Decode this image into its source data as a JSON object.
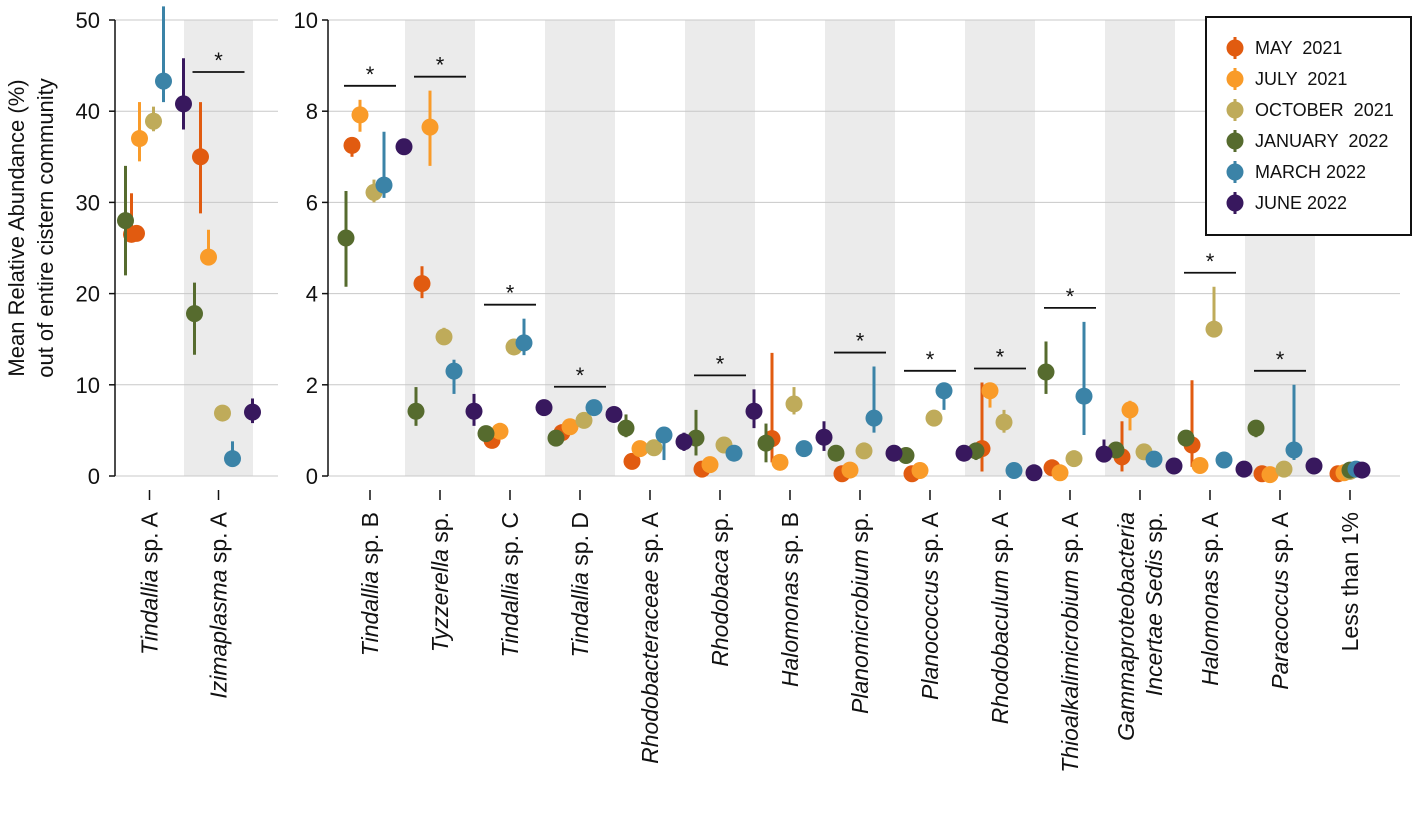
{
  "chart_data": [
    {
      "type": "scatter",
      "title": "",
      "ylabel_line1": "Mean Relative Abundance (%)",
      "ylabel_line2": "out of entire cistern community",
      "ylim": [
        0,
        50
      ],
      "yticks": [
        "0",
        "10",
        "20",
        "30",
        "40",
        "50"
      ],
      "grid": true,
      "categories": [
        {
          "name": "Tindallia",
          "suffix": " sp. A",
          "shaded": false,
          "significant": false
        },
        {
          "name": "Izimaplasma",
          "suffix": " sp. A",
          "shaded": true,
          "significant": true
        }
      ],
      "series": [
        {
          "name": "MAY  2021",
          "color": "#e15b10",
          "values": [
            26.5,
            35.0
          ],
          "err_low": [
            26.2,
            28.8
          ],
          "err_high": [
            31.0,
            41.0
          ]
        },
        {
          "name": "JULY  2021",
          "color": "#f99b29",
          "values": [
            37.0,
            24.0
          ],
          "err_low": [
            34.5,
            23.2
          ],
          "err_high": [
            41.0,
            27.0
          ]
        },
        {
          "name": "OCTOBER  2021",
          "color": "#bfab5a",
          "values": [
            38.9,
            6.9
          ],
          "err_low": [
            37.8,
            6.5
          ],
          "err_high": [
            40.5,
            7.2
          ]
        },
        {
          "name": "JANUARY  2022",
          "color": "#566b2e",
          "values": [
            28.0,
            17.8
          ],
          "err_low": [
            22.0,
            13.3
          ],
          "err_high": [
            34.0,
            21.2
          ]
        },
        {
          "name": "MARCH 2022",
          "color": "#3b83a7",
          "values": [
            43.3,
            1.9
          ],
          "err_low": [
            41.0,
            1.6
          ],
          "err_high": [
            51.5,
            3.8
          ]
        },
        {
          "name": "JUNE 2022",
          "color": "#38185e",
          "values": [
            40.8,
            7.0
          ],
          "err_low": [
            38.0,
            5.8
          ],
          "err_high": [
            45.8,
            8.5
          ]
        }
      ],
      "extra_points": [
        {
          "series": 0,
          "category": 0,
          "value": 26.6
        }
      ]
    },
    {
      "type": "scatter",
      "title": "",
      "ylim": [
        0,
        10
      ],
      "yticks": [
        "0",
        "2",
        "4",
        "6",
        "8",
        "10"
      ],
      "grid": true,
      "categories": [
        {
          "name": "Tindallia",
          "suffix": " sp. B",
          "shaded": false,
          "significant": true
        },
        {
          "name": "Tyzzerella",
          "suffix": " sp.",
          "shaded": true,
          "significant": true
        },
        {
          "name": "Tindallia",
          "suffix": " sp. C",
          "shaded": false,
          "significant": true
        },
        {
          "name": "Tindallia",
          "suffix": " sp. D",
          "shaded": true,
          "significant": true
        },
        {
          "name": "Rhodobacteraceae",
          "suffix": " sp. A",
          "shaded": false,
          "significant": false
        },
        {
          "name": "Rhodobaca",
          "suffix": " sp.",
          "shaded": true,
          "significant": true
        },
        {
          "name": "Halomonas",
          "suffix": " sp. B",
          "shaded": false,
          "significant": false
        },
        {
          "name": "Planomicrobium",
          "suffix": " sp.",
          "shaded": true,
          "significant": true
        },
        {
          "name": "Planococcus",
          "suffix": " sp. A",
          "shaded": false,
          "significant": true
        },
        {
          "name": "Rhodobaculum",
          "suffix": " sp. A",
          "shaded": true,
          "significant": true
        },
        {
          "name": "Thioalkalimicrobium",
          "suffix": " sp. A",
          "shaded": false,
          "significant": true
        },
        {
          "name": "Gammaproteobacteria",
          "suffix": "",
          "name2": "Incertae Sedis",
          "suffix2": " sp.",
          "shaded": true,
          "significant": false
        },
        {
          "name": "Halomonas",
          "suffix": " sp. A",
          "shaded": false,
          "significant": true
        },
        {
          "name": "Paracoccus",
          "suffix": " sp. A",
          "shaded": true,
          "significant": true
        },
        {
          "name": "",
          "suffix": "Less than 1%",
          "shaded": false,
          "significant": false
        }
      ],
      "series": [
        {
          "name": "MAY  2021",
          "color": "#e15b10",
          "values": [
            7.25,
            4.22,
            0.78,
            0.95,
            0.32,
            0.15,
            0.82,
            0.05,
            0.05,
            0.6,
            0.18,
            0.42,
            0.68,
            0.05,
            0.05
          ],
          "err_low": [
            7.0,
            3.9,
            0.65,
            0.8,
            0.2,
            0.08,
            0.3,
            0.02,
            0.02,
            0.1,
            0.08,
            0.1,
            0.2,
            0.02,
            0.03
          ],
          "err_high": [
            7.4,
            4.6,
            0.95,
            1.1,
            0.5,
            0.25,
            2.7,
            0.1,
            0.1,
            2.05,
            0.3,
            1.2,
            2.1,
            0.1,
            0.08
          ]
        },
        {
          "name": "JULY  2021",
          "color": "#f99b29",
          "values": [
            7.92,
            7.65,
            0.98,
            1.08,
            0.6,
            0.25,
            0.3,
            0.13,
            0.12,
            1.87,
            0.07,
            1.45,
            0.23,
            0.03,
            0.07
          ],
          "err_low": [
            7.55,
            6.8,
            0.9,
            0.95,
            0.5,
            0.18,
            0.2,
            0.08,
            0.08,
            1.5,
            0.03,
            1.0,
            0.15,
            0.01,
            0.03
          ],
          "err_high": [
            8.25,
            8.45,
            1.1,
            1.2,
            0.75,
            0.35,
            0.45,
            0.2,
            0.2,
            2.05,
            0.12,
            1.65,
            0.35,
            0.06,
            0.12
          ]
        },
        {
          "name": "OCTOBER  2021",
          "color": "#bfab5a",
          "values": [
            6.22,
            3.05,
            2.83,
            1.22,
            0.62,
            0.68,
            1.58,
            0.55,
            1.27,
            1.18,
            0.38,
            0.53,
            3.22,
            0.15,
            0.1
          ],
          "err_low": [
            6.0,
            2.9,
            2.7,
            1.05,
            0.5,
            0.55,
            1.35,
            0.45,
            1.1,
            0.95,
            0.28,
            0.45,
            3.05,
            0.1,
            0.07
          ],
          "err_high": [
            6.5,
            3.25,
            2.95,
            1.35,
            0.75,
            0.8,
            1.95,
            0.65,
            1.45,
            1.45,
            0.48,
            0.62,
            4.15,
            0.22,
            0.14
          ]
        },
        {
          "name": "JANUARY  2022",
          "color": "#566b2e",
          "values": [
            5.22,
            1.42,
            0.93,
            0.83,
            1.05,
            0.83,
            0.72,
            0.5,
            0.45,
            0.55,
            2.28,
            0.57,
            0.83,
            1.05,
            0.13
          ],
          "err_low": [
            4.15,
            1.1,
            0.8,
            0.65,
            0.85,
            0.45,
            0.3,
            0.35,
            0.35,
            0.35,
            1.8,
            0.45,
            0.7,
            0.85,
            0.1
          ],
          "err_high": [
            6.25,
            1.95,
            1.05,
            0.95,
            1.35,
            1.45,
            1.15,
            0.62,
            0.55,
            0.7,
            2.95,
            0.65,
            0.95,
            1.2,
            0.17
          ]
        },
        {
          "name": "MARCH 2022",
          "color": "#3b83a7",
          "values": [
            6.38,
            2.3,
            2.92,
            1.5,
            0.9,
            0.5,
            0.6,
            1.27,
            1.87,
            0.12,
            1.75,
            0.37,
            0.35,
            0.57,
            0.15
          ],
          "err_low": [
            6.1,
            1.8,
            2.65,
            1.35,
            0.35,
            0.4,
            0.45,
            0.95,
            1.45,
            0.05,
            0.9,
            0.25,
            0.2,
            0.35,
            0.1
          ],
          "err_high": [
            7.55,
            2.55,
            3.45,
            1.65,
            1.05,
            0.6,
            0.75,
            2.4,
            2.0,
            0.2,
            3.38,
            0.5,
            0.5,
            2.0,
            0.2
          ]
        },
        {
          "name": "JUNE 2022",
          "color": "#38185e",
          "values": [
            7.22,
            1.42,
            1.5,
            1.35,
            0.75,
            1.42,
            0.85,
            0.5,
            0.5,
            0.07,
            0.48,
            0.22,
            0.15,
            0.22,
            0.13
          ],
          "err_low": [
            7.05,
            1.1,
            1.38,
            1.2,
            0.55,
            1.05,
            0.55,
            0.4,
            0.4,
            0.03,
            0.35,
            0.15,
            0.1,
            0.15,
            0.1
          ],
          "err_high": [
            7.35,
            1.8,
            1.62,
            1.5,
            0.95,
            1.9,
            1.2,
            0.6,
            0.6,
            0.12,
            0.8,
            0.3,
            0.22,
            0.3,
            0.17
          ]
        }
      ]
    }
  ],
  "legend": {
    "location": "top-right",
    "entries": [
      "MAY  2021",
      "JULY  2021",
      "OCTOBER  2021",
      "JANUARY  2022",
      "MARCH 2022",
      "JUNE 2022"
    ]
  },
  "significance_marker": "*",
  "colors": {
    "shade": "#ebebeb",
    "grid": "#c8c8c8",
    "axis": "#111111"
  }
}
